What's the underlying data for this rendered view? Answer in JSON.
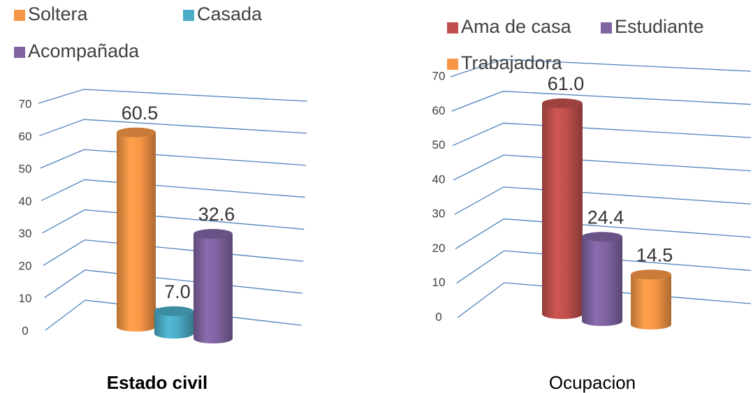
{
  "chart_data": [
    {
      "type": "bar",
      "title": "Estado civil",
      "series": [
        {
          "name": "Soltera",
          "color": "#f79646",
          "values": [
            60.5
          ],
          "value_labels": [
            "60.5"
          ]
        },
        {
          "name": "Casada",
          "color": "#4bacc6",
          "values": [
            7.0
          ],
          "value_labels": [
            "7.0"
          ]
        },
        {
          "name": "Acompañada",
          "color": "#8064a2",
          "values": [
            32.6
          ],
          "value_labels": [
            "32.6"
          ]
        }
      ],
      "ylim": [
        0,
        70
      ],
      "yticks": [
        0,
        10,
        20,
        30,
        40,
        50,
        60,
        70
      ],
      "grid": true
    },
    {
      "type": "bar",
      "title": "Ocupacion",
      "series": [
        {
          "name": "Ama de casa",
          "color": "#c0504d",
          "values": [
            61.0
          ],
          "value_labels": [
            "61.0"
          ]
        },
        {
          "name": "Estudiante",
          "color": "#8064a2",
          "values": [
            24.4
          ],
          "value_labels": [
            "24.4"
          ]
        },
        {
          "name": "Trabajadora",
          "color": "#f79646",
          "values": [
            14.5
          ],
          "value_labels": [
            "14.5"
          ]
        }
      ],
      "ylim": [
        0,
        70
      ],
      "yticks": [
        0,
        10,
        20,
        30,
        40,
        50,
        60,
        70
      ],
      "grid": true
    }
  ]
}
